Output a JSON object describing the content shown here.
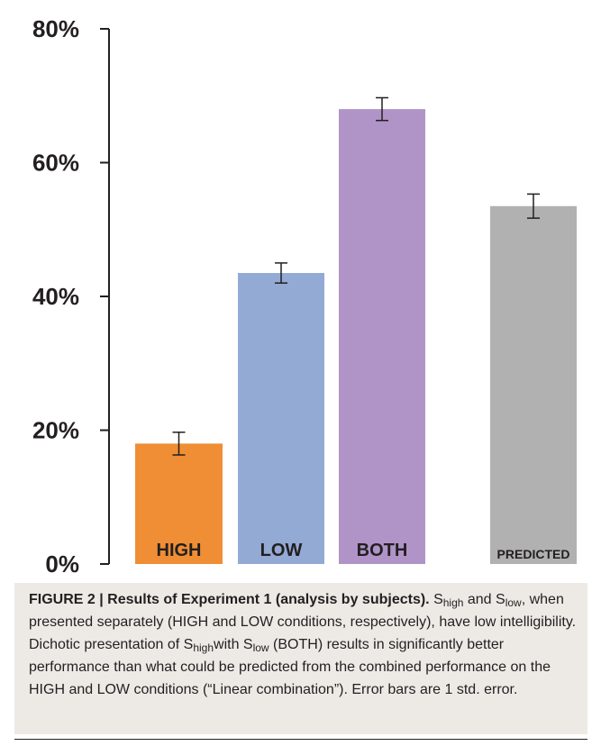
{
  "chart_data": {
    "type": "bar",
    "categories": [
      "HIGH",
      "LOW",
      "BOTH",
      "PREDICTED"
    ],
    "values": [
      18,
      43.5,
      68,
      53.5
    ],
    "errors": [
      1.7,
      1.5,
      1.7,
      1.8
    ],
    "colors": [
      "#ef8e34",
      "#93aad4",
      "#b094c8",
      "#b1b1b1"
    ],
    "y_ticks": [
      0,
      20,
      40,
      60,
      80
    ],
    "y_tick_labels": [
      "0%",
      "20%",
      "40%",
      "60%",
      "80%"
    ],
    "ylim": [
      0,
      80
    ],
    "grid": false,
    "legend": "none",
    "title": "",
    "xlabel": "",
    "ylabel": ""
  },
  "caption": {
    "figure_label": "FIGURE 2 | Results of Experiment 1 (analysis by subjects).",
    "s": "S",
    "high": "high",
    "low": "low",
    "and": " and",
    "t1": ", when presented separately (HIGH and LOW conditions, respectively), have low intelligibility. Dichotic presentation of ",
    "with": "with ",
    "t2": " (BOTH) results in significantly better performance than what could be predicted from the combined performance on the HIGH and LOW conditions (“Linear combination”). Error bars are 1 std. error."
  }
}
